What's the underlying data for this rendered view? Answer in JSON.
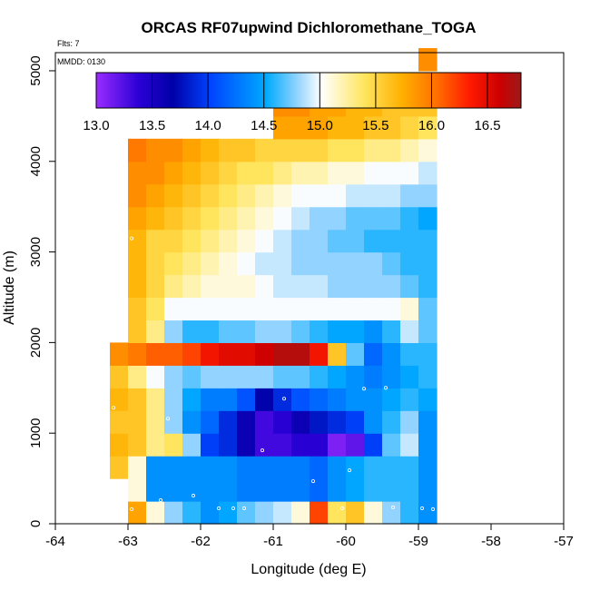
{
  "chart_data": {
    "type": "heatmap",
    "title": "ORCAS RF07upwind Dichloromethane_TOGA",
    "subtitle_flights": "Flts: 7",
    "subtitle_date": "MMDD: 0130",
    "xlabel": "Longitude (deg E)",
    "ylabel": "Altitude (m)",
    "xlim": [
      -64,
      -57
    ],
    "ylim": [
      0,
      5200
    ],
    "xticks": [
      "-64",
      "-63",
      "-62",
      "-61",
      "-60",
      "-59",
      "-58",
      "-57"
    ],
    "yticks": [
      "0",
      "1000",
      "2000",
      "3000",
      "4000",
      "5000"
    ],
    "colorbar": {
      "min": 13.0,
      "max": 16.8,
      "ticks": [
        "13.0",
        "13.5",
        "14.0",
        "14.5",
        "15.0",
        "15.5",
        "16.0",
        "16.5"
      ]
    },
    "grid_x0": -63.25,
    "grid_dx": 0.25,
    "grid_y0": 0,
    "grid_dy": 250,
    "rows": [
      [
        null,
        15.8,
        15.1,
        14.8,
        14.6,
        14.4,
        14.5,
        14.7,
        14.8,
        14.9,
        15.1,
        16.2,
        15.4,
        15.6,
        15.1,
        14.8,
        14.6,
        14.4
      ],
      [
        null,
        15.1,
        14.4,
        14.4,
        14.4,
        14.4,
        14.4,
        14.3,
        14.3,
        14.3,
        14.3,
        14.2,
        14.4,
        14.5,
        14.6,
        14.6,
        14.6,
        14.4
      ],
      [
        15.6,
        15.1,
        14.4,
        14.4,
        14.4,
        14.4,
        14.4,
        14.3,
        14.3,
        14.3,
        14.3,
        14.2,
        14.4,
        14.5,
        14.6,
        14.6,
        14.6,
        14.4
      ],
      [
        15.7,
        15.6,
        15.3,
        15.4,
        14.8,
        14.0,
        13.9,
        13.6,
        13.3,
        13.3,
        13.4,
        13.4,
        13.1,
        13.2,
        14.0,
        14.7,
        14.9,
        14.4
      ],
      [
        15.6,
        15.6,
        15.3,
        14.8,
        14.4,
        14.2,
        13.9,
        13.6,
        13.3,
        13.4,
        13.6,
        13.8,
        13.9,
        14.0,
        14.4,
        14.6,
        14.8,
        14.4
      ],
      [
        15.7,
        15.6,
        15.3,
        14.8,
        14.5,
        14.3,
        14.3,
        14.1,
        13.7,
        13.9,
        14.1,
        14.2,
        14.3,
        14.4,
        14.4,
        14.5,
        14.6,
        14.5
      ],
      [
        15.6,
        15.3,
        15.0,
        14.8,
        14.7,
        14.8,
        14.8,
        14.8,
        14.8,
        14.7,
        14.7,
        14.6,
        14.5,
        14.4,
        14.3,
        14.4,
        14.5,
        14.6
      ],
      [
        15.9,
        16.0,
        16.1,
        16.1,
        16.2,
        16.4,
        16.5,
        16.5,
        16.6,
        16.7,
        16.7,
        16.4,
        15.6,
        14.7,
        14.2,
        14.4,
        14.6,
        14.6
      ],
      [
        null,
        15.6,
        15.3,
        14.8,
        14.6,
        14.6,
        14.7,
        14.7,
        14.8,
        14.8,
        14.7,
        14.6,
        14.5,
        14.5,
        14.4,
        14.6,
        14.9,
        14.7
      ],
      [
        null,
        15.6,
        15.4,
        15.0,
        15.0,
        15.0,
        15.0,
        15.0,
        15.0,
        15.0,
        15.0,
        15.0,
        15.0,
        15.0,
        15.0,
        15.0,
        15.1,
        14.7
      ],
      [
        null,
        15.7,
        15.5,
        15.3,
        15.2,
        15.1,
        15.1,
        15.1,
        15.0,
        14.9,
        14.9,
        14.9,
        14.8,
        14.8,
        14.8,
        14.8,
        14.7,
        14.6
      ],
      [
        null,
        15.7,
        15.5,
        15.4,
        15.3,
        15.2,
        15.1,
        15.0,
        14.9,
        14.9,
        14.8,
        14.8,
        14.8,
        14.8,
        14.8,
        14.7,
        14.6,
        14.6
      ],
      [
        null,
        15.7,
        15.5,
        15.5,
        15.4,
        15.3,
        15.2,
        15.1,
        15.0,
        14.9,
        14.8,
        14.8,
        14.7,
        14.7,
        14.6,
        14.6,
        14.6,
        14.6
      ],
      [
        null,
        15.8,
        15.7,
        15.6,
        15.5,
        15.4,
        15.3,
        15.2,
        15.1,
        15.0,
        14.9,
        14.8,
        14.8,
        14.7,
        14.7,
        14.7,
        14.6,
        14.5
      ],
      [
        null,
        15.9,
        15.8,
        15.7,
        15.6,
        15.5,
        15.4,
        15.3,
        15.2,
        15.1,
        15.0,
        15.0,
        15.0,
        14.9,
        14.9,
        14.9,
        14.8,
        14.8
      ],
      [
        null,
        15.9,
        15.9,
        15.8,
        15.7,
        15.6,
        15.5,
        15.4,
        15.4,
        15.3,
        15.2,
        15.2,
        15.1,
        15.1,
        15.0,
        15.0,
        15.0,
        14.9
      ],
      [
        null,
        16.0,
        15.9,
        15.9,
        15.8,
        15.7,
        15.6,
        15.6,
        15.5,
        15.5,
        15.5,
        15.5,
        15.4,
        15.4,
        15.3,
        15.3,
        15.2,
        15.1
      ],
      [
        null,
        null,
        null,
        null,
        null,
        null,
        null,
        null,
        null,
        15.8,
        15.8,
        15.8,
        15.7,
        15.7,
        15.6,
        15.6,
        15.5,
        15.4
      ],
      [
        null,
        null,
        null,
        null,
        null,
        null,
        null,
        null,
        null,
        15.9,
        15.9,
        15.8,
        15.8,
        15.7,
        15.7,
        15.6,
        15.6,
        15.6
      ],
      [
        null,
        null,
        null,
        null,
        null,
        null,
        null,
        null,
        null,
        null,
        null,
        null,
        null,
        null,
        null,
        null,
        null,
        null
      ],
      [
        null,
        null,
        null,
        null,
        null,
        null,
        null,
        null,
        null,
        null,
        null,
        null,
        null,
        null,
        null,
        null,
        null,
        15.9
      ]
    ],
    "samples": [
      [
        -62.95,
        160
      ],
      [
        -62.55,
        260
      ],
      [
        -62.1,
        310
      ],
      [
        -61.75,
        170
      ],
      [
        -61.55,
        170
      ],
      [
        -61.4,
        170
      ],
      [
        -60.45,
        470
      ],
      [
        -60.05,
        170
      ],
      [
        -59.95,
        590
      ],
      [
        -59.35,
        180
      ],
      [
        -58.95,
        170
      ],
      [
        -58.8,
        160
      ],
      [
        -58.65,
        160
      ],
      [
        -63.05,
        420
      ],
      [
        -58.6,
        870
      ],
      [
        -61.15,
        810
      ],
      [
        -62.45,
        1160
      ],
      [
        -63.2,
        1280
      ],
      [
        -60.85,
        1380
      ],
      [
        -59.75,
        1490
      ],
      [
        -59.45,
        1500
      ],
      [
        -62.95,
        3150
      ],
      [
        -58.7,
        2730
      ],
      [
        -58.6,
        3660
      ]
    ]
  }
}
